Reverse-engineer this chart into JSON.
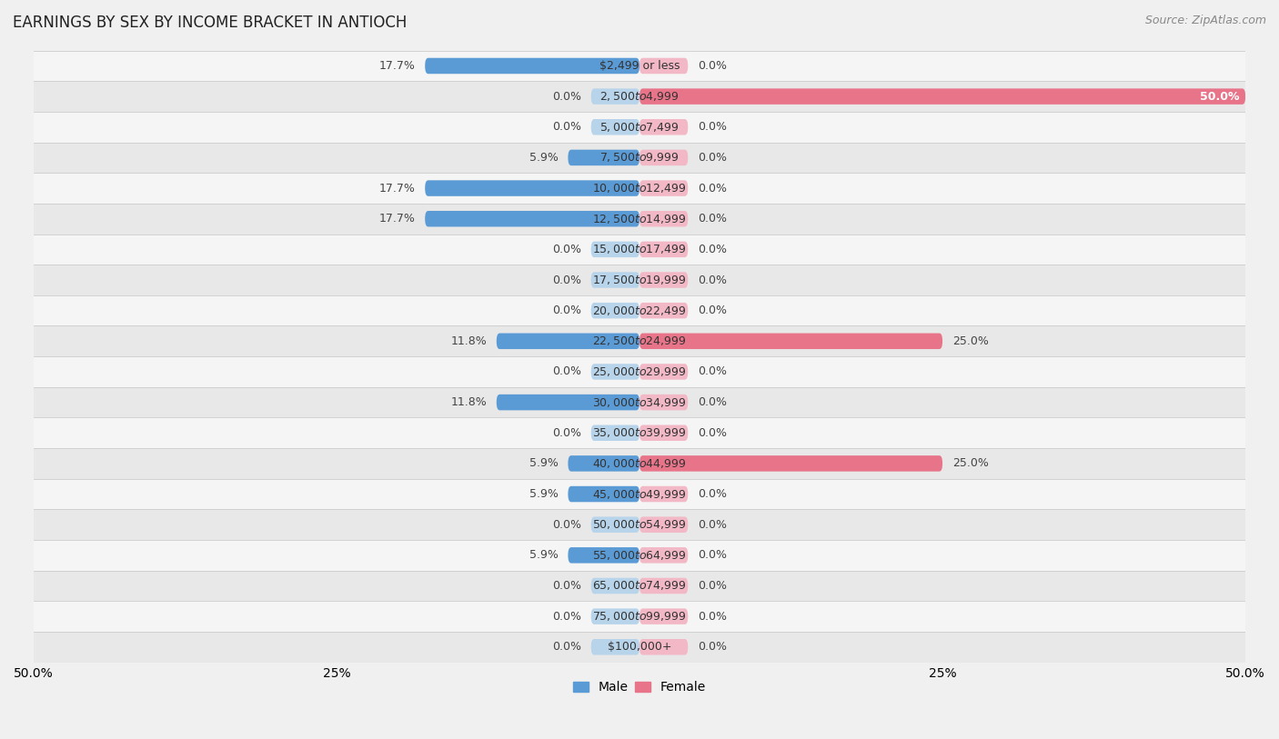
{
  "title": "EARNINGS BY SEX BY INCOME BRACKET IN ANTIOCH",
  "source": "Source: ZipAtlas.com",
  "categories": [
    "$2,499 or less",
    "$2,500 to $4,999",
    "$5,000 to $7,499",
    "$7,500 to $9,999",
    "$10,000 to $12,499",
    "$12,500 to $14,999",
    "$15,000 to $17,499",
    "$17,500 to $19,999",
    "$20,000 to $22,499",
    "$22,500 to $24,999",
    "$25,000 to $29,999",
    "$30,000 to $34,999",
    "$35,000 to $39,999",
    "$40,000 to $44,999",
    "$45,000 to $49,999",
    "$50,000 to $54,999",
    "$55,000 to $64,999",
    "$65,000 to $74,999",
    "$75,000 to $99,999",
    "$100,000+"
  ],
  "male_values": [
    17.7,
    0.0,
    0.0,
    5.9,
    17.7,
    17.7,
    0.0,
    0.0,
    0.0,
    11.8,
    0.0,
    11.8,
    0.0,
    5.9,
    5.9,
    0.0,
    5.9,
    0.0,
    0.0,
    0.0
  ],
  "female_values": [
    0.0,
    50.0,
    0.0,
    0.0,
    0.0,
    0.0,
    0.0,
    0.0,
    0.0,
    25.0,
    0.0,
    0.0,
    0.0,
    25.0,
    0.0,
    0.0,
    0.0,
    0.0,
    0.0,
    0.0
  ],
  "male_color_full": "#5b9bd5",
  "male_color_zero": "#b8d4ea",
  "female_color_full": "#e8748a",
  "female_color_zero": "#f2b8c6",
  "male_label": "Male",
  "female_label": "Female",
  "xlim": 50.0,
  "bar_height": 0.52,
  "min_bar_width": 4.0,
  "background_color": "#f0f0f0",
  "row_color_odd": "#f5f5f5",
  "row_color_even": "#e8e8e8",
  "axis_label_fontsize": 10,
  "title_fontsize": 12,
  "value_fontsize": 9,
  "category_fontsize": 9,
  "tick_positions": [
    -50,
    -25,
    0,
    25,
    50
  ],
  "tick_labels": [
    "50.0%",
    "25%",
    "",
    "25%",
    "50.0%"
  ]
}
